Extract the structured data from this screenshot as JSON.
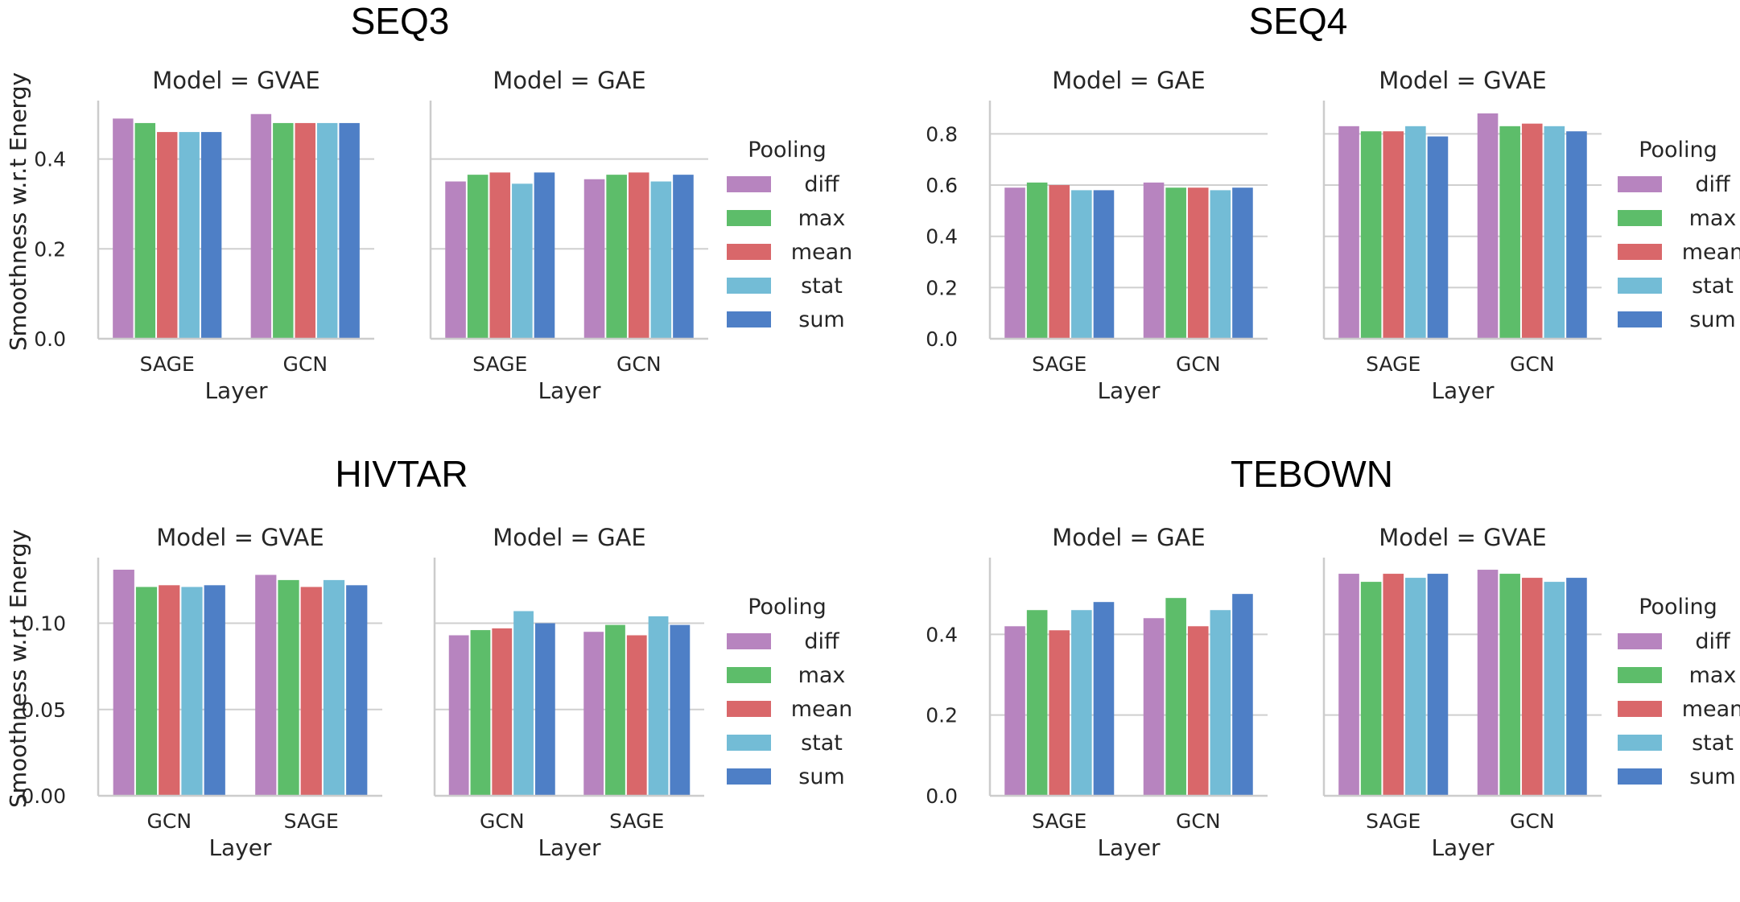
{
  "legend": {
    "title": "Pooling",
    "entries": [
      "diff",
      "max",
      "mean",
      "stat",
      "sum"
    ],
    "colors": [
      "#b784bf",
      "#5dbd6a",
      "#d9676a",
      "#73bcd6",
      "#4e7fc6"
    ]
  },
  "chart_data": [
    {
      "type": "bar",
      "dataset": "SEQ3",
      "title": "Model = GVAE",
      "xlabel": "Layer",
      "ylabel": "Smoothness w.r.t Energy",
      "categories": [
        "SAGE",
        "GCN"
      ],
      "ylim": [
        0,
        0.53
      ],
      "yticks": [
        "0.0",
        "0.2",
        "0.4"
      ],
      "series": [
        {
          "name": "diff",
          "values": [
            0.49,
            0.5
          ]
        },
        {
          "name": "max",
          "values": [
            0.48,
            0.48
          ]
        },
        {
          "name": "mean",
          "values": [
            0.46,
            0.48
          ]
        },
        {
          "name": "stat",
          "values": [
            0.46,
            0.48
          ]
        },
        {
          "name": "sum",
          "values": [
            0.46,
            0.48
          ]
        }
      ]
    },
    {
      "type": "bar",
      "dataset": "SEQ3",
      "title": "Model = GAE",
      "xlabel": "Layer",
      "ylabel": "",
      "categories": [
        "SAGE",
        "GCN"
      ],
      "ylim": [
        0,
        0.53
      ],
      "yticks": [],
      "series": [
        {
          "name": "diff",
          "values": [
            0.35,
            0.355
          ]
        },
        {
          "name": "max",
          "values": [
            0.365,
            0.365
          ]
        },
        {
          "name": "mean",
          "values": [
            0.37,
            0.37
          ]
        },
        {
          "name": "stat",
          "values": [
            0.345,
            0.35
          ]
        },
        {
          "name": "sum",
          "values": [
            0.37,
            0.365
          ]
        }
      ]
    },
    {
      "type": "bar",
      "dataset": "SEQ4",
      "title": "Model = GAE",
      "xlabel": "Layer",
      "ylabel": "Smoothness w.r.t Energy",
      "categories": [
        "SAGE",
        "GCN"
      ],
      "ylim": [
        0,
        0.93
      ],
      "yticks": [
        "0.0",
        "0.2",
        "0.4",
        "0.6",
        "0.8"
      ],
      "series": [
        {
          "name": "diff",
          "values": [
            0.59,
            0.61
          ]
        },
        {
          "name": "max",
          "values": [
            0.61,
            0.59
          ]
        },
        {
          "name": "mean",
          "values": [
            0.6,
            0.59
          ]
        },
        {
          "name": "stat",
          "values": [
            0.58,
            0.58
          ]
        },
        {
          "name": "sum",
          "values": [
            0.58,
            0.59
          ]
        }
      ]
    },
    {
      "type": "bar",
      "dataset": "SEQ4",
      "title": "Model = GVAE",
      "xlabel": "Layer",
      "ylabel": "",
      "categories": [
        "SAGE",
        "GCN"
      ],
      "ylim": [
        0,
        0.93
      ],
      "yticks": [],
      "series": [
        {
          "name": "diff",
          "values": [
            0.83,
            0.88
          ]
        },
        {
          "name": "max",
          "values": [
            0.81,
            0.83
          ]
        },
        {
          "name": "mean",
          "values": [
            0.81,
            0.84
          ]
        },
        {
          "name": "stat",
          "values": [
            0.83,
            0.83
          ]
        },
        {
          "name": "sum",
          "values": [
            0.79,
            0.81
          ]
        }
      ]
    },
    {
      "type": "bar",
      "dataset": "HIVTAR",
      "title": "Model = GVAE",
      "xlabel": "Layer",
      "ylabel": "Smoothness w.r.t Energy",
      "categories": [
        "GCN",
        "SAGE"
      ],
      "ylim": [
        0,
        0.138
      ],
      "yticks": [
        "0.00",
        "0.05",
        "0.10"
      ],
      "series": [
        {
          "name": "diff",
          "values": [
            0.131,
            0.128
          ]
        },
        {
          "name": "max",
          "values": [
            0.121,
            0.125
          ]
        },
        {
          "name": "mean",
          "values": [
            0.122,
            0.121
          ]
        },
        {
          "name": "stat",
          "values": [
            0.121,
            0.125
          ]
        },
        {
          "name": "sum",
          "values": [
            0.122,
            0.122
          ]
        }
      ]
    },
    {
      "type": "bar",
      "dataset": "HIVTAR",
      "title": "Model = GAE",
      "xlabel": "Layer",
      "ylabel": "",
      "categories": [
        "GCN",
        "SAGE"
      ],
      "ylim": [
        0,
        0.138
      ],
      "yticks": [],
      "series": [
        {
          "name": "diff",
          "values": [
            0.093,
            0.095
          ]
        },
        {
          "name": "max",
          "values": [
            0.096,
            0.099
          ]
        },
        {
          "name": "mean",
          "values": [
            0.097,
            0.093
          ]
        },
        {
          "name": "stat",
          "values": [
            0.107,
            0.104
          ]
        },
        {
          "name": "sum",
          "values": [
            0.1,
            0.099
          ]
        }
      ]
    },
    {
      "type": "bar",
      "dataset": "TEBOWN",
      "title": "Model = GAE",
      "xlabel": "Layer",
      "ylabel": "Smoothness w.r.t Energy",
      "categories": [
        "SAGE",
        "GCN"
      ],
      "ylim": [
        0,
        0.59
      ],
      "yticks": [
        "0.0",
        "0.2",
        "0.4"
      ],
      "series": [
        {
          "name": "diff",
          "values": [
            0.42,
            0.44
          ]
        },
        {
          "name": "max",
          "values": [
            0.46,
            0.49
          ]
        },
        {
          "name": "mean",
          "values": [
            0.41,
            0.42
          ]
        },
        {
          "name": "stat",
          "values": [
            0.46,
            0.46
          ]
        },
        {
          "name": "sum",
          "values": [
            0.48,
            0.5
          ]
        }
      ]
    },
    {
      "type": "bar",
      "dataset": "TEBOWN",
      "title": "Model = GVAE",
      "xlabel": "Layer",
      "ylabel": "",
      "categories": [
        "SAGE",
        "GCN"
      ],
      "ylim": [
        0,
        0.59
      ],
      "yticks": [],
      "series": [
        {
          "name": "diff",
          "values": [
            0.55,
            0.56
          ]
        },
        {
          "name": "max",
          "values": [
            0.53,
            0.55
          ]
        },
        {
          "name": "mean",
          "values": [
            0.55,
            0.54
          ]
        },
        {
          "name": "stat",
          "values": [
            0.54,
            0.53
          ]
        },
        {
          "name": "sum",
          "values": [
            0.55,
            0.54
          ]
        }
      ]
    }
  ]
}
